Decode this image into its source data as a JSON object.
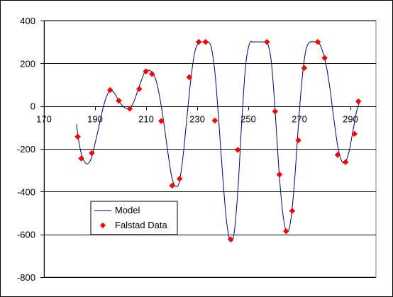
{
  "chart_data": {
    "type": "line",
    "title": "",
    "xlabel": "",
    "ylabel": "",
    "xlim": [
      170,
      300
    ],
    "ylim": [
      -800,
      400
    ],
    "xticks": [
      170,
      190,
      210,
      230,
      250,
      270,
      290
    ],
    "xtick_labels": [
      "170",
      "190",
      "210",
      "230",
      "250",
      "270",
      "290"
    ],
    "yticks": [
      400,
      200,
      0,
      -200,
      -400,
      -600,
      -800
    ],
    "ytick_labels": [
      "400",
      "200",
      "0",
      "-200",
      "-400",
      "-600",
      "-800"
    ],
    "grid": "horizontal",
    "legend_position": "lower-left",
    "series": [
      {
        "name": "Model",
        "kind": "line",
        "color": "#000080",
        "points": [
          [
            182.7,
            -85
          ],
          [
            184,
            -190
          ],
          [
            185.5,
            -252
          ],
          [
            187,
            -270
          ],
          [
            188.5,
            -245
          ],
          [
            190,
            -175
          ],
          [
            191.5,
            -95
          ],
          [
            193,
            -15
          ],
          [
            194.5,
            45
          ],
          [
            196,
            73
          ],
          [
            197.5,
            62
          ],
          [
            199,
            30
          ],
          [
            200.5,
            5
          ],
          [
            202,
            -10
          ],
          [
            203.5,
            -10
          ],
          [
            205,
            15
          ],
          [
            206.5,
            65
          ],
          [
            208,
            115
          ],
          [
            209.5,
            160
          ],
          [
            211,
            168
          ],
          [
            212.5,
            155
          ],
          [
            214,
            115
          ],
          [
            215.5,
            30
          ],
          [
            217,
            -85
          ],
          [
            218.5,
            -215
          ],
          [
            220,
            -330
          ],
          [
            221.5,
            -375
          ],
          [
            223,
            -355
          ],
          [
            224.5,
            -230
          ],
          [
            226,
            -50
          ],
          [
            227.5,
            125
          ],
          [
            229,
            250
          ],
          [
            230.5,
            295
          ],
          [
            232,
            300
          ],
          [
            234,
            300
          ],
          [
            235.5,
            275
          ],
          [
            237,
            150
          ],
          [
            238.5,
            -80
          ],
          [
            240,
            -330
          ],
          [
            241.5,
            -540
          ],
          [
            243,
            -630
          ],
          [
            244.5,
            -590
          ],
          [
            246,
            -380
          ],
          [
            247.5,
            -60
          ],
          [
            249,
            195
          ],
          [
            250.5,
            292
          ],
          [
            252,
            300
          ],
          [
            254,
            300
          ],
          [
            256,
            300
          ],
          [
            257.5,
            295
          ],
          [
            259,
            210
          ],
          [
            260.5,
            -20
          ],
          [
            262,
            -300
          ],
          [
            263.5,
            -500
          ],
          [
            265,
            -588
          ],
          [
            266.5,
            -545
          ],
          [
            268,
            -370
          ],
          [
            269.5,
            -110
          ],
          [
            271,
            120
          ],
          [
            272.5,
            258
          ],
          [
            274,
            298
          ],
          [
            276,
            300
          ],
          [
            277.5,
            298
          ],
          [
            279,
            260
          ],
          [
            280.5,
            190
          ],
          [
            282,
            80
          ],
          [
            283.5,
            -60
          ],
          [
            285,
            -185
          ],
          [
            286.5,
            -255
          ],
          [
            288,
            -262
          ],
          [
            289.5,
            -210
          ],
          [
            291,
            -115
          ],
          [
            292.5,
            -20
          ],
          [
            293.5,
            15
          ]
        ]
      },
      {
        "name": "Falstad Data",
        "kind": "scatter",
        "color": "#ff0000",
        "points": [
          [
            183.2,
            -143
          ],
          [
            184.6,
            -245
          ],
          [
            188.7,
            -220
          ],
          [
            195.9,
            75
          ],
          [
            199.3,
            25
          ],
          [
            203.6,
            -12
          ],
          [
            207.3,
            80
          ],
          [
            209.9,
            162
          ],
          [
            212.3,
            150
          ],
          [
            215.9,
            -70
          ],
          [
            220.2,
            -372
          ],
          [
            223.1,
            -340
          ],
          [
            226.9,
            135
          ],
          [
            230.6,
            300
          ],
          [
            233.3,
            300
          ],
          [
            236.9,
            -68
          ],
          [
            243.1,
            -623
          ],
          [
            245.9,
            -205
          ],
          [
            257.3,
            300
          ],
          [
            260.5,
            -25
          ],
          [
            262.2,
            -320
          ],
          [
            264.8,
            -585
          ],
          [
            267.2,
            -490
          ],
          [
            269.6,
            -160
          ],
          [
            271.9,
            178
          ],
          [
            277.2,
            300
          ],
          [
            279.9,
            225
          ],
          [
            285,
            -228
          ],
          [
            288.1,
            -262
          ],
          [
            291.6,
            -130
          ],
          [
            293.1,
            22
          ]
        ]
      }
    ]
  }
}
